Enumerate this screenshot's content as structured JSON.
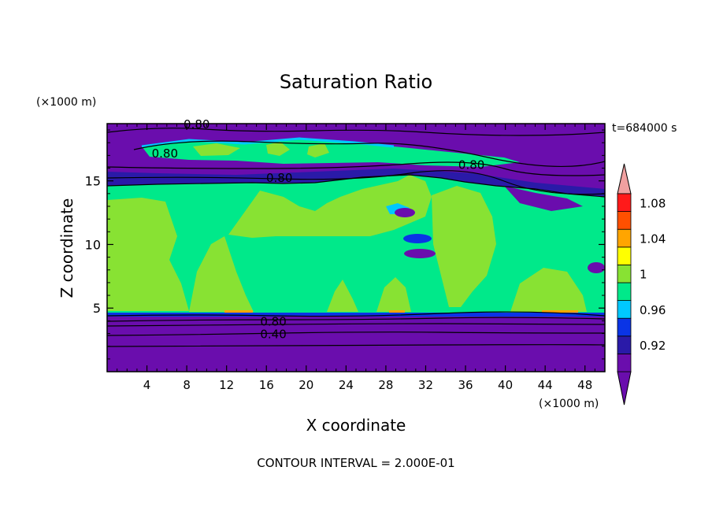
{
  "chart_data": {
    "type": "heatmap",
    "title": "Saturation Ratio",
    "xlabel": "X coordinate",
    "ylabel": "Z coordinate",
    "x_unit": "(×1000 m)",
    "y_unit": "(×1000 m)",
    "time_label": "t=684000 s",
    "footer": "CONTOUR INTERVAL = 2.000E-01",
    "xlim": [
      0,
      50
    ],
    "ylim": [
      0,
      19.5
    ],
    "x_ticks": [
      {
        "v": 4,
        "label": "4"
      },
      {
        "v": 8,
        "label": "8"
      },
      {
        "v": 12,
        "label": "12"
      },
      {
        "v": 16,
        "label": "16"
      },
      {
        "v": 20,
        "label": "20"
      },
      {
        "v": 24,
        "label": "24"
      },
      {
        "v": 28,
        "label": "28"
      },
      {
        "v": 32,
        "label": "32"
      },
      {
        "v": 36,
        "label": "36"
      },
      {
        "v": 40,
        "label": "40"
      },
      {
        "v": 44,
        "label": "44"
      },
      {
        "v": 48,
        "label": "48"
      }
    ],
    "y_ticks": [
      {
        "v": 5,
        "label": "5"
      },
      {
        "v": 10,
        "label": "10"
      },
      {
        "v": 15,
        "label": "15"
      }
    ],
    "colorbar": {
      "bins": [
        {
          "color": "#6a0dad"
        },
        {
          "color": "#2a1aa8"
        },
        {
          "color": "#0a34e6"
        },
        {
          "color": "#00c8ff"
        },
        {
          "color": "#00e98a"
        },
        {
          "color": "#88e233"
        },
        {
          "color": "#ffff00"
        },
        {
          "color": "#ffa500"
        },
        {
          "color": "#ff5000"
        },
        {
          "color": "#ff1a1a"
        }
      ],
      "over_color": "#f0a0a0",
      "under_color": "#6a0dad",
      "labels": [
        {
          "v": 0.92,
          "label": "0.92"
        },
        {
          "v": 0.96,
          "label": "0.96"
        },
        {
          "v": 1.0,
          "label": "1"
        },
        {
          "v": 1.04,
          "label": "1.04"
        },
        {
          "v": 1.08,
          "label": "1.08"
        }
      ],
      "range": [
        0.9,
        1.1
      ]
    },
    "contour_labels": [
      {
        "text": "0.80",
        "x": 9.0,
        "y": 19.5
      },
      {
        "text": "0.80",
        "x": 5.8,
        "y": 17.2
      },
      {
        "text": "0.80",
        "x": 17.3,
        "y": 15.3
      },
      {
        "text": "0.80",
        "x": 36.6,
        "y": 16.3
      },
      {
        "text": "0.80",
        "x": 16.7,
        "y": 4.0
      },
      {
        "text": "0.40",
        "x": 16.7,
        "y": 3.0
      }
    ]
  }
}
